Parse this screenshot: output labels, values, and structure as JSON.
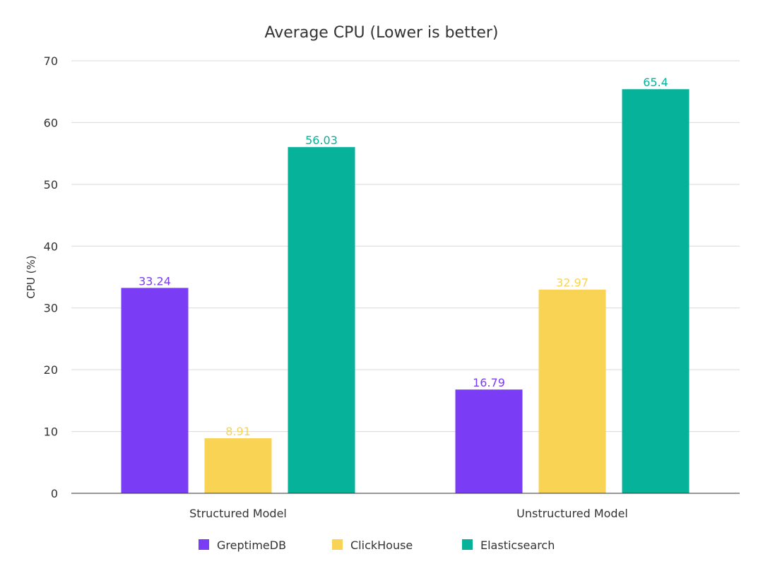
{
  "chart_data": {
    "type": "bar",
    "title": "Average CPU (Lower is better)",
    "xlabel": "",
    "ylabel": "CPU (%)",
    "ylim": [
      0,
      70
    ],
    "yticks": [
      "0",
      "10",
      "20",
      "30",
      "40",
      "50",
      "60",
      "70"
    ],
    "grid": true,
    "legend_position": "bottom",
    "categories": [
      "Structured Model",
      "Unstructured Model"
    ],
    "series": [
      {
        "name": "GreptimeDB",
        "color": "#7b3cf5",
        "values": [
          33.24,
          16.79
        ],
        "labels": [
          "33.24",
          "16.79"
        ]
      },
      {
        "name": "ClickHouse",
        "color": "#f8d354",
        "values": [
          8.91,
          32.97
        ],
        "labels": [
          "8.91",
          "32.97"
        ]
      },
      {
        "name": "Elasticsearch",
        "color": "#07b29a",
        "values": [
          56.03,
          65.4
        ],
        "labels": [
          "56.03",
          "65.4"
        ]
      }
    ]
  }
}
